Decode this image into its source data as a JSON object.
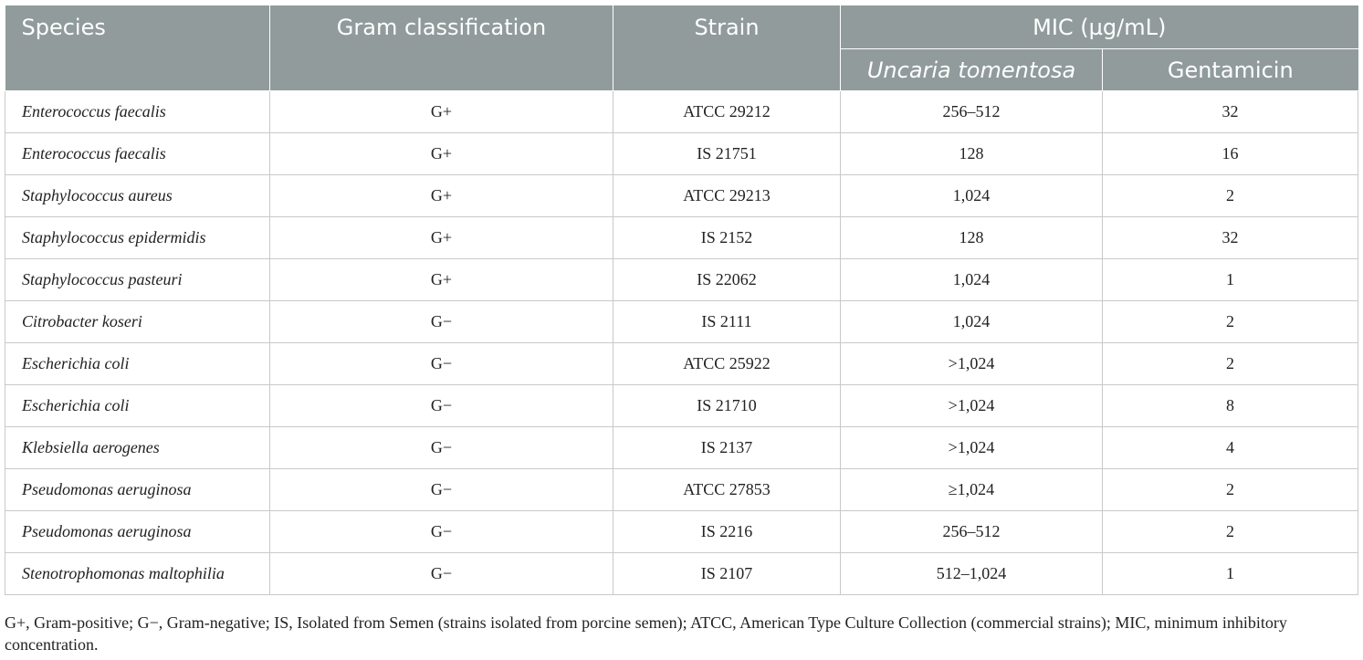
{
  "table": {
    "header": {
      "species": "Species",
      "gram": "Gram classification",
      "strain": "Strain",
      "mic": "MIC (µg/mL)",
      "uncaria": "Uncaria tomentosa",
      "gentamicin": "Gentamicin"
    },
    "rows": [
      {
        "species": "Enterococcus faecalis",
        "gram": "G+",
        "strain": "ATCC 29212",
        "uncaria": "256–512",
        "gentamicin": "32"
      },
      {
        "species": "Enterococcus faecalis",
        "gram": "G+",
        "strain": "IS 21751",
        "uncaria": "128",
        "gentamicin": "16"
      },
      {
        "species": "Staphylococcus aureus",
        "gram": "G+",
        "strain": "ATCC 29213",
        "uncaria": "1,024",
        "gentamicin": "2"
      },
      {
        "species": "Staphylococcus epidermidis",
        "gram": "G+",
        "strain": "IS 2152",
        "uncaria": "128",
        "gentamicin": "32"
      },
      {
        "species": "Staphylococcus pasteuri",
        "gram": "G+",
        "strain": "IS 22062",
        "uncaria": "1,024",
        "gentamicin": "1"
      },
      {
        "species": "Citrobacter koseri",
        "gram": "G−",
        "strain": "IS 2111",
        "uncaria": "1,024",
        "gentamicin": "2"
      },
      {
        "species": "Escherichia coli",
        "gram": "G−",
        "strain": "ATCC 25922",
        "uncaria": ">1,024",
        "gentamicin": "2"
      },
      {
        "species": "Escherichia coli",
        "gram": "G−",
        "strain": "IS 21710",
        "uncaria": ">1,024",
        "gentamicin": "8"
      },
      {
        "species": "Klebsiella aerogenes",
        "gram": "G−",
        "strain": "IS 2137",
        "uncaria": ">1,024",
        "gentamicin": "4"
      },
      {
        "species": "Pseudomonas aeruginosa",
        "gram": "G−",
        "strain": "ATCC 27853",
        "uncaria": "≥1,024",
        "gentamicin": "2"
      },
      {
        "species": "Pseudomonas aeruginosa",
        "gram": "G−",
        "strain": "IS 2216",
        "uncaria": "256–512",
        "gentamicin": "2"
      },
      {
        "species": "Stenotrophomonas maltophilia",
        "gram": "G−",
        "strain": "IS 2107",
        "uncaria": "512–1,024",
        "gentamicin": "1"
      }
    ]
  },
  "footnote": "G+, Gram-positive; G−, Gram-negative; IS, Isolated from Semen (strains isolated from porcine semen); ATCC, American Type Culture Collection (commercial strains); MIC, minimum inhibitory concentration.",
  "colors": {
    "header_bg": "#919b9b",
    "header_text": "#ffffff",
    "grid": "#c9c9c9"
  }
}
